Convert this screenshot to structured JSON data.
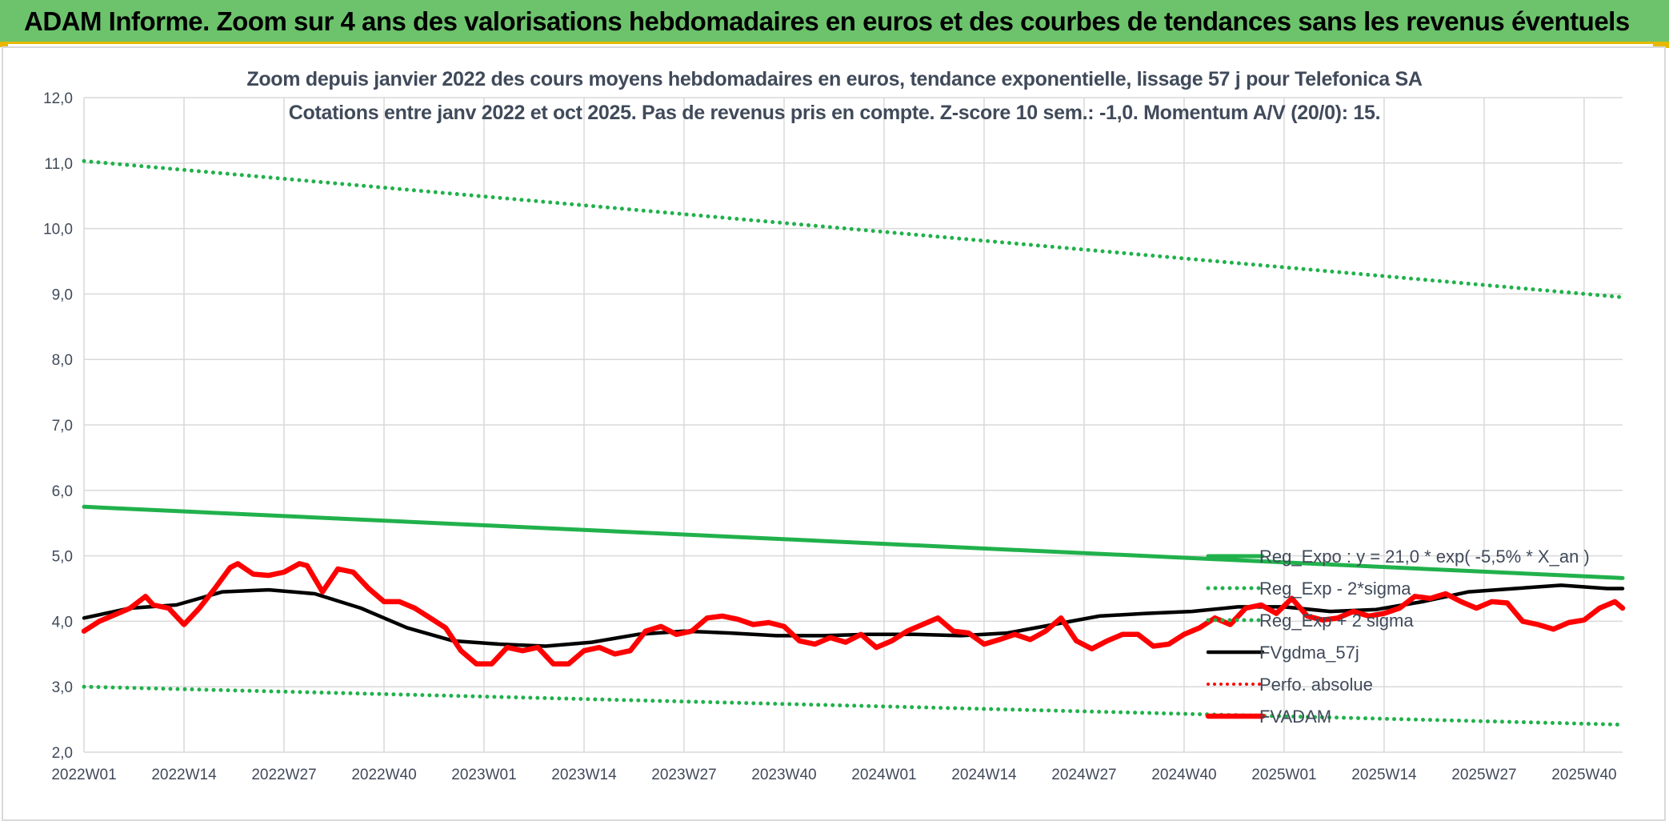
{
  "banner": {
    "title": "ADAM Informe. Zoom sur 4 ans des valorisations hebdomadaires en euros et des courbes de tendances sans les revenus éventuels"
  },
  "chart_data": {
    "type": "line",
    "title": "Zoom depuis janvier 2022 des cours moyens hebdomadaires en euros, tendance exponentielle, lissage 57 j pour Telefonica SA",
    "subtitle": "Cotations entre janv 2022 et oct 2025. Pas de revenus pris en compte. Z-score 10 sem.: -1,0. Momentum A/V (20/0): 15.",
    "xlabel": "",
    "ylabel": "",
    "ylim": [
      2.0,
      12.0
    ],
    "y_ticks": [
      "2,0",
      "3,0",
      "4,0",
      "5,0",
      "6,0",
      "7,0",
      "8,0",
      "9,0",
      "10,0",
      "11,0",
      "12,0"
    ],
    "x_ticks": [
      "2022W01",
      "2022W14",
      "2022W27",
      "2022W40",
      "2023W01",
      "2023W14",
      "2023W27",
      "2023W40",
      "2024W01",
      "2024W14",
      "2024W27",
      "2024W40",
      "2025W01",
      "2025W14",
      "2025W27",
      "2025W40"
    ],
    "x_range_weeks": [
      0,
      200
    ],
    "grid": true,
    "legend_position": "right",
    "series": [
      {
        "name": "Reg_Expo : y = 21,0 * exp( -5,5% *  X_an )",
        "style": "solid",
        "color": "#21b14c",
        "x": [
          0,
          200
        ],
        "values": [
          5.75,
          4.66
        ]
      },
      {
        "name": "Reg_Exp - 2*sigma",
        "style": "dotted",
        "color": "#21b14c",
        "x": [
          0,
          200
        ],
        "values": [
          3.0,
          2.42
        ]
      },
      {
        "name": "Reg_Exp + 2 sigma",
        "style": "dotted",
        "color": "#21b14c",
        "x": [
          0,
          200
        ],
        "values": [
          11.03,
          8.95
        ]
      },
      {
        "name": "FVgdma_57j",
        "style": "solid",
        "color": "#000000",
        "x": [
          0,
          6,
          12,
          18,
          24,
          30,
          36,
          42,
          48,
          54,
          60,
          66,
          72,
          78,
          84,
          90,
          96,
          102,
          108,
          114,
          120,
          126,
          132,
          138,
          144,
          150,
          156,
          162,
          168,
          174,
          180,
          186,
          192,
          198,
          200
        ],
        "values": [
          4.05,
          4.2,
          4.25,
          4.45,
          4.48,
          4.42,
          4.2,
          3.9,
          3.7,
          3.65,
          3.62,
          3.68,
          3.8,
          3.85,
          3.82,
          3.78,
          3.78,
          3.8,
          3.8,
          3.78,
          3.82,
          3.95,
          4.08,
          4.12,
          4.15,
          4.22,
          4.22,
          4.15,
          4.18,
          4.3,
          4.45,
          4.5,
          4.55,
          4.5,
          4.5
        ]
      },
      {
        "name": "Perfo. absolue",
        "style": "dotted",
        "color": "#ff0000",
        "x": [],
        "values": []
      },
      {
        "name": "FVADAM",
        "style": "solid",
        "color": "#ff0000",
        "x": [
          0,
          2,
          4,
          6,
          8,
          9,
          11,
          13,
          15,
          17,
          19,
          20,
          22,
          24,
          26,
          28,
          29,
          31,
          33,
          35,
          37,
          39,
          41,
          43,
          45,
          47,
          49,
          51,
          53,
          55,
          57,
          59,
          61,
          63,
          65,
          67,
          69,
          71,
          73,
          75,
          77,
          79,
          81,
          83,
          85,
          87,
          89,
          91,
          93,
          95,
          97,
          99,
          101,
          103,
          105,
          107,
          109,
          111,
          113,
          115,
          117,
          119,
          121,
          123,
          125,
          127,
          129,
          131,
          133,
          135,
          137,
          139,
          141,
          143,
          145,
          147,
          149,
          151,
          153,
          155,
          157,
          159,
          161,
          163,
          165,
          167,
          169,
          171,
          173,
          175,
          177,
          179,
          181,
          183,
          185,
          187,
          189,
          191,
          193,
          195,
          197,
          199,
          200
        ],
        "values": [
          3.85,
          4.0,
          4.1,
          4.2,
          4.38,
          4.25,
          4.2,
          3.95,
          4.2,
          4.5,
          4.82,
          4.88,
          4.72,
          4.7,
          4.75,
          4.88,
          4.85,
          4.45,
          4.8,
          4.75,
          4.5,
          4.3,
          4.3,
          4.2,
          4.05,
          3.9,
          3.55,
          3.35,
          3.35,
          3.6,
          3.55,
          3.6,
          3.35,
          3.35,
          3.55,
          3.6,
          3.5,
          3.55,
          3.85,
          3.92,
          3.8,
          3.85,
          4.05,
          4.08,
          4.03,
          3.95,
          3.98,
          3.92,
          3.7,
          3.65,
          3.75,
          3.68,
          3.8,
          3.6,
          3.7,
          3.85,
          3.95,
          4.05,
          3.85,
          3.82,
          3.65,
          3.72,
          3.8,
          3.72,
          3.85,
          4.05,
          3.7,
          3.58,
          3.7,
          3.8,
          3.8,
          3.62,
          3.65,
          3.8,
          3.9,
          4.05,
          3.95,
          4.2,
          4.25,
          4.12,
          4.35,
          4.08,
          4.02,
          4.05,
          4.15,
          4.08,
          4.12,
          4.2,
          4.38,
          4.35,
          4.42,
          4.3,
          4.2,
          4.3,
          4.28,
          4.0,
          3.95,
          3.88,
          3.98,
          4.02,
          4.2,
          4.3,
          4.2
        ]
      }
    ]
  }
}
